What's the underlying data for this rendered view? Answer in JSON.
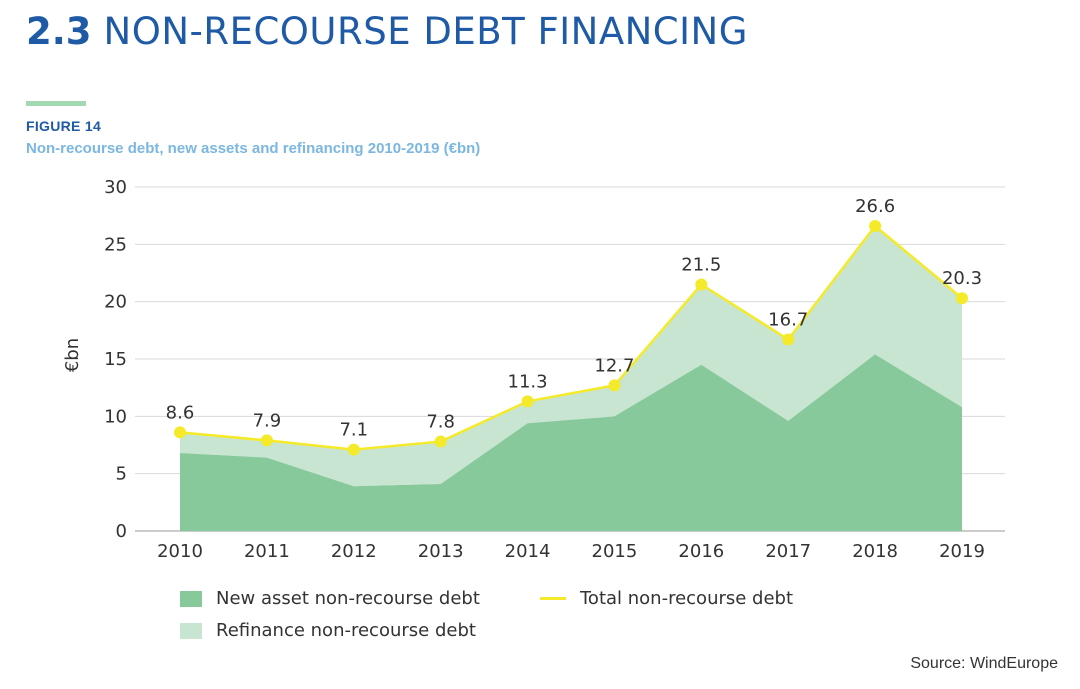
{
  "header": {
    "section_number": "2.3",
    "section_title": "NON-RECOURSE DEBT FINANCING",
    "figure_label": "FIGURE 14",
    "figure_subtitle": "Non-recourse debt, new assets and refinancing 2010-2019 (€bn)"
  },
  "source": "Source: WindEurope",
  "colors": {
    "new_asset": "#88c99b",
    "refinance": "#c8e5d2",
    "total_line": "#f4ea2a",
    "grid": "#d9d9d9",
    "title": "#1f5aa6",
    "subtitle": "#7bb7e0",
    "accent": "#a3d9b1"
  },
  "chart_data": {
    "type": "area",
    "ylabel": "€bn",
    "xlabel": "",
    "ylim": [
      0,
      30
    ],
    "yticks": [
      0,
      5,
      10,
      15,
      20,
      25,
      30
    ],
    "grid": true,
    "legend_position": "bottom",
    "categories": [
      "2010",
      "2011",
      "2012",
      "2013",
      "2014",
      "2015",
      "2016",
      "2017",
      "2018",
      "2019"
    ],
    "series": [
      {
        "name": "New asset non-recourse debt",
        "kind": "area",
        "values": [
          6.8,
          6.4,
          3.9,
          4.1,
          9.4,
          10.0,
          14.5,
          9.6,
          15.4,
          10.8
        ]
      },
      {
        "name": "Refinance non-recourse debt",
        "kind": "area",
        "values": [
          1.8,
          1.5,
          3.2,
          3.7,
          1.9,
          2.7,
          7.0,
          7.1,
          11.2,
          9.5
        ]
      },
      {
        "name": "Total non-recourse debt",
        "kind": "line",
        "values": [
          8.6,
          7.9,
          7.1,
          7.8,
          11.3,
          12.7,
          21.5,
          16.7,
          26.6,
          20.3
        ],
        "labels": [
          "8.6",
          "7.9",
          "7.1",
          "7.8",
          "11.3",
          "12.7",
          "21.5",
          "16.7",
          "26.6",
          "20.3"
        ]
      }
    ]
  }
}
